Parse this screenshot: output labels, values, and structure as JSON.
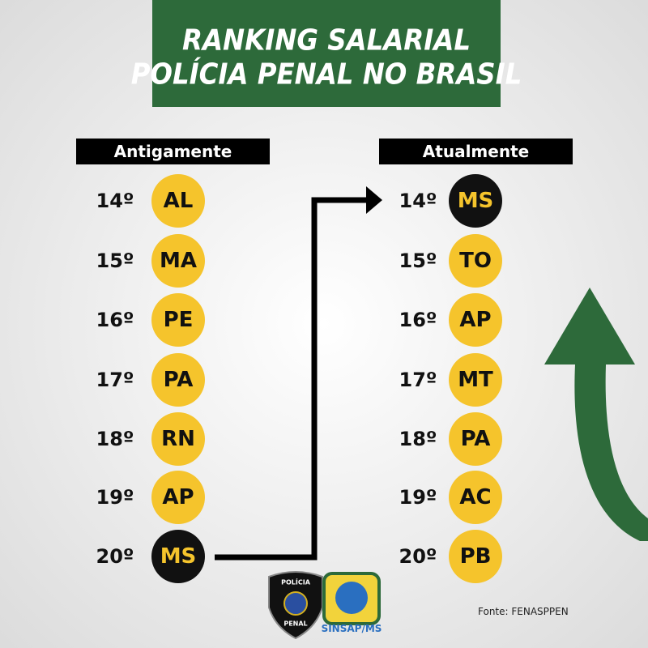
{
  "header": {
    "title_lines": [
      "RANKING SALARIAL",
      "POLÍCIA PENAL NO BRASIL"
    ]
  },
  "columns": [
    {
      "header": "Antigamente",
      "items": [
        {
          "rank": "14º",
          "state": "AL"
        },
        {
          "rank": "15º",
          "state": "MA"
        },
        {
          "rank": "16º",
          "state": "PE"
        },
        {
          "rank": "17º",
          "state": "PA"
        },
        {
          "rank": "18º",
          "state": "RN"
        },
        {
          "rank": "19º",
          "state": "AP"
        },
        {
          "rank": "20º",
          "state": "MS",
          "highlight": true
        }
      ]
    },
    {
      "header": "Atualmente",
      "items": [
        {
          "rank": "14º",
          "state": "MS",
          "highlight": true
        },
        {
          "rank": "15º",
          "state": "TO"
        },
        {
          "rank": "16º",
          "state": "AP"
        },
        {
          "rank": "17º",
          "state": "MT"
        },
        {
          "rank": "18º",
          "state": "PA"
        },
        {
          "rank": "19º",
          "state": "AC"
        },
        {
          "rank": "20º",
          "state": "PB"
        }
      ]
    }
  ],
  "logos": {
    "badge_top": "POLÍCIA",
    "badge_bottom": "PENAL",
    "union": "SINSAP/MS"
  },
  "footer": {
    "source": "Fonte: FENASPPEN"
  }
}
